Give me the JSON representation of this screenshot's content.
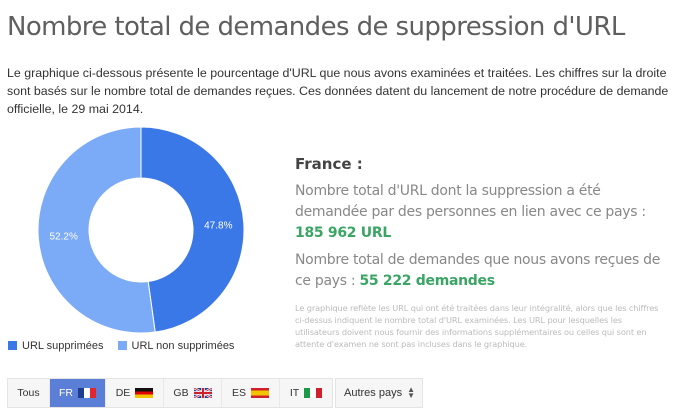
{
  "title": "Nombre total de demandes de suppression d'URL",
  "intro": "Le graphique ci-dessous présente le pourcentage d'URL que nous avons examinées et traitées. Les chiffres sur la droite sont basés sur le nombre total de demandes reçues. Ces données datent du lancement de notre procédure de demande officielle, le 29 mai 2014.",
  "chart_data": {
    "type": "pie",
    "donut": true,
    "categories": [
      "URL supprimées",
      "URL non supprimées"
    ],
    "values": [
      47.8,
      52.2
    ],
    "labels": [
      "47.8%",
      "52.2%"
    ],
    "colors": [
      "#3b78e7",
      "#7baaf7"
    ],
    "legend_position": "bottom-left"
  },
  "info": {
    "country": "France :",
    "urls_text": "Nombre total d'URL dont la suppression a été demandée par des personnes en lien avec ce pays : ",
    "urls_value": "185 962 URL",
    "requests_text": "Nombre total de demandes que nous avons reçues de ce pays : ",
    "requests_value": "55 222 demandes",
    "note": "Le graphique reflète les URL qui ont été traitées dans leur intégralité, alors que les chiffres ci-dessus indiquent le nombre total d'URL examinées. Les URL pour lesquelles les utilisateurs doivent nous fournir des informations supplémentaires ou celles qui sont en attente d'examen ne sont pas incluses dans le graphique."
  },
  "tabs": [
    {
      "label": "Tous",
      "flag": null,
      "active": false
    },
    {
      "label": "FR",
      "flag": "fr",
      "active": true
    },
    {
      "label": "DE",
      "flag": "de",
      "active": false
    },
    {
      "label": "GB",
      "flag": "gb",
      "active": false
    },
    {
      "label": "ES",
      "flag": "es",
      "active": false
    },
    {
      "label": "IT",
      "flag": "it",
      "active": false
    }
  ],
  "select": {
    "value": "Autres pays"
  }
}
